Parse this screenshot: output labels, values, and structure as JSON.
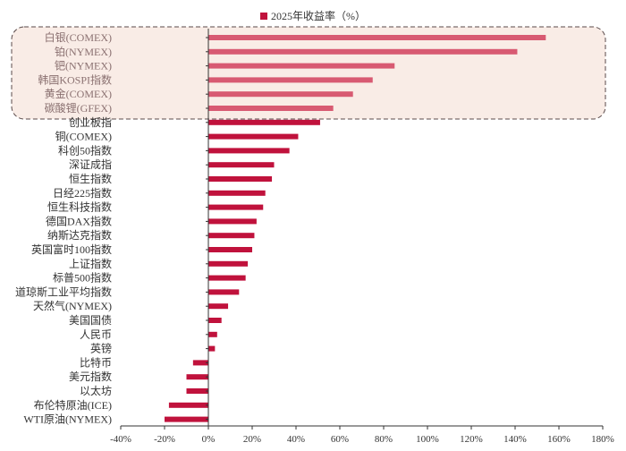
{
  "chart_data": {
    "type": "bar",
    "orientation": "horizontal",
    "series": [
      {
        "name": "2025年收益率（%）"
      }
    ],
    "categories": [
      "白银(COMEX)",
      "铂(NYMEX)",
      "钯(NYMEX)",
      "韩国KOSPI指数",
      "黄金(COMEX)",
      "碳酸锂(GFEX)",
      "创业板指",
      "铜(COMEX)",
      "科创50指数",
      "深证成指",
      "恒生指数",
      "日经225指数",
      "恒生科技指数",
      "德国DAX指数",
      "纳斯达克指数",
      "英国富时100指数",
      "上证指数",
      "标普500指数",
      "道琼斯工业平均指数",
      "天然气(NYMEX)",
      "美国国债",
      "人民币",
      "英镑",
      "比特币",
      "美元指数",
      "以太坊",
      "布伦特原油(ICE)",
      "WTI原油(NYMEX)"
    ],
    "values": [
      154,
      141,
      85,
      75,
      66,
      57,
      51,
      41,
      37,
      30,
      29,
      26,
      25,
      22,
      21,
      20,
      18,
      17,
      14,
      9,
      6,
      4,
      3,
      -7,
      -10,
      -10,
      -18,
      -20
    ],
    "highlighted_categories": [
      "白银(COMEX)",
      "铂(NYMEX)",
      "钯(NYMEX)",
      "韩国KOSPI指数",
      "黄金(COMEX)",
      "碳酸锂(GFEX)"
    ],
    "x_ticks": [
      "-40%",
      "-20%",
      "0%",
      "20%",
      "40%",
      "60%",
      "80%",
      "100%",
      "120%",
      "140%",
      "160%",
      "180%"
    ],
    "xlim": [
      -40,
      180
    ],
    "grid": false,
    "legend_position": "top-center",
    "colors": {
      "bar": "#c0123c",
      "highlight_bar": "#d85a72",
      "highlight_box_fill": "#f9ece6",
      "highlight_box_border": "#5a4a4a",
      "highlight_label": "#8a7070",
      "label": "#333333",
      "axis": "#333333"
    }
  }
}
